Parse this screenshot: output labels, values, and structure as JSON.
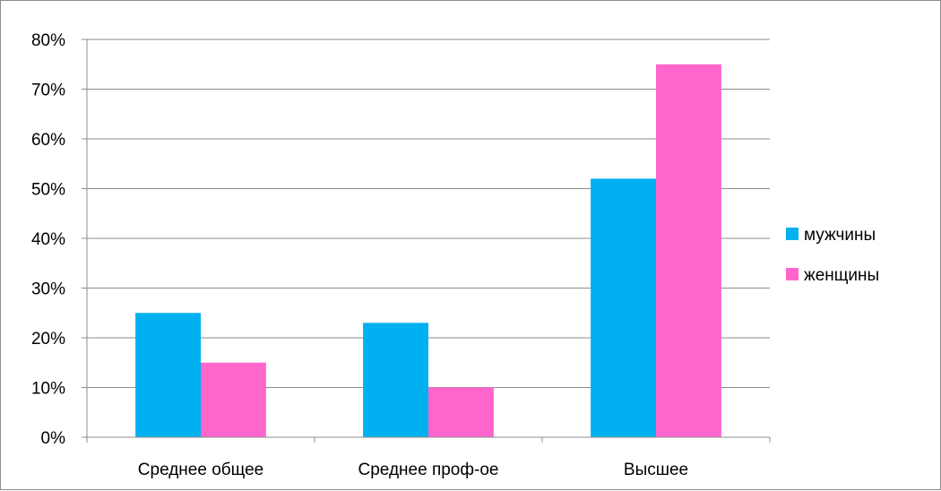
{
  "chart_data": {
    "type": "bar",
    "title": "",
    "xlabel": "",
    "ylabel": "",
    "categories": [
      "Среднее общее",
      "Среднее проф-ое",
      "Высшее"
    ],
    "series": [
      {
        "name": "мужчины",
        "color": "#00b0f0",
        "values": [
          25,
          23,
          52
        ]
      },
      {
        "name": "женщины",
        "color": "#ff66cc",
        "values": [
          15,
          10,
          75
        ]
      }
    ],
    "ylim": [
      0,
      80
    ],
    "yticks": [
      "0%",
      "10%",
      "20%",
      "30%",
      "40%",
      "50%",
      "60%",
      "70%",
      "80%"
    ],
    "y_format": "percent",
    "grid": true,
    "legend_position": "right"
  }
}
